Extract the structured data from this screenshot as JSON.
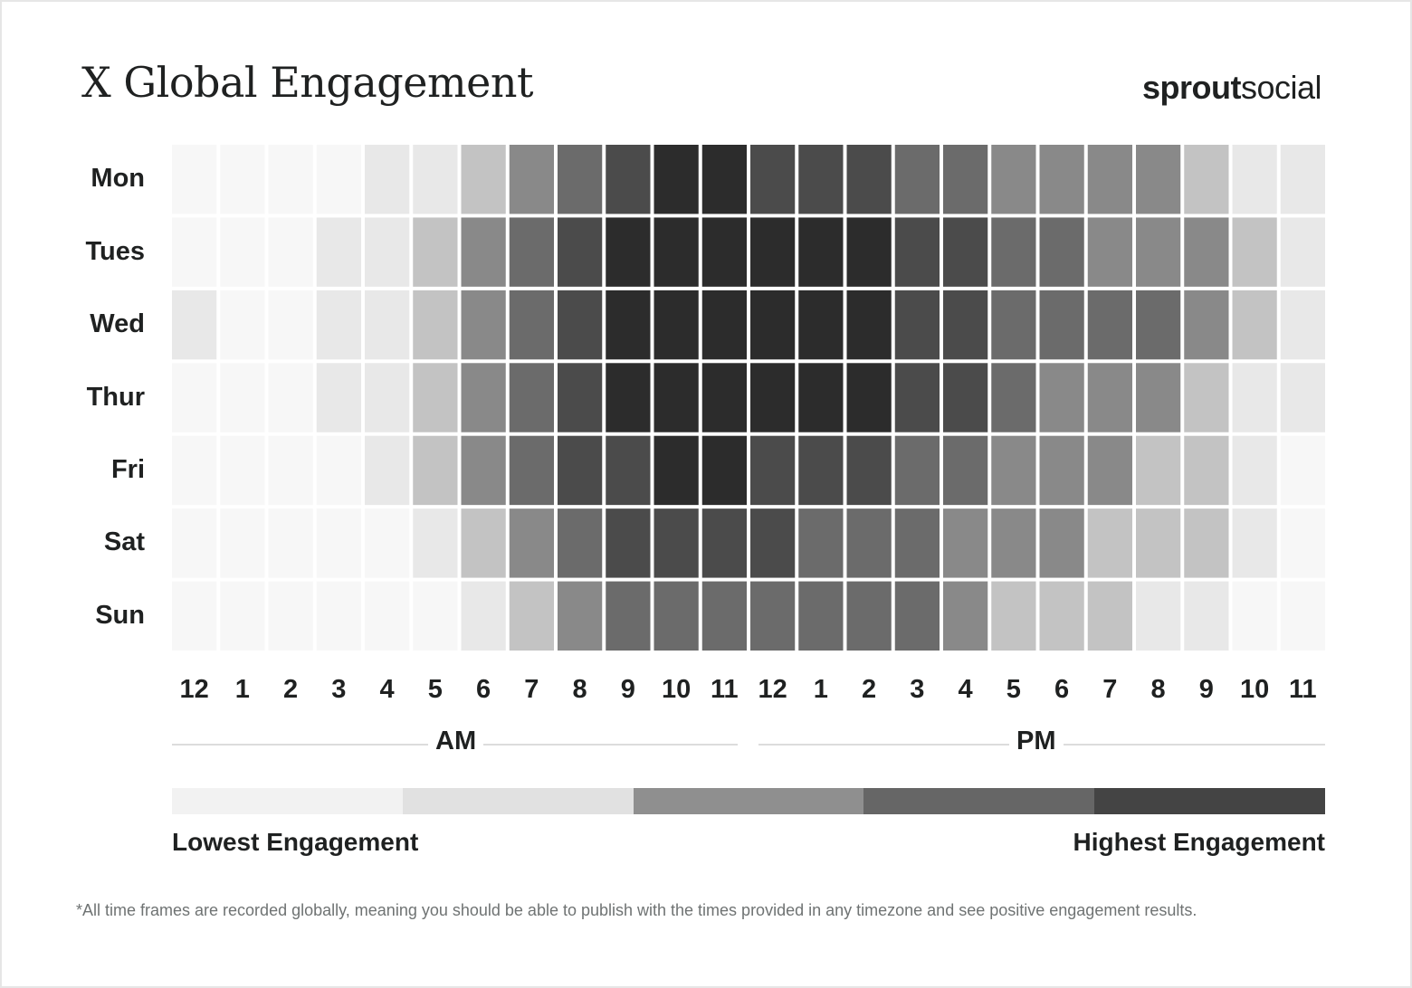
{
  "title": "X Global Engagement",
  "brand": {
    "bold": "sprout",
    "light": "social"
  },
  "chart_data": {
    "type": "heatmap",
    "title": "X Global Engagement",
    "rows": [
      "Mon",
      "Tues",
      "Wed",
      "Thur",
      "Fri",
      "Sat",
      "Sun"
    ],
    "columns": [
      "12",
      "1",
      "2",
      "3",
      "4",
      "5",
      "6",
      "7",
      "8",
      "9",
      "10",
      "11",
      "12",
      "1",
      "2",
      "3",
      "4",
      "5",
      "6",
      "7",
      "8",
      "9",
      "10",
      "11"
    ],
    "periods": [
      "AM",
      "PM"
    ],
    "scale": [
      "#f7f7f7",
      "#e8e8e8",
      "#c3c3c3",
      "#898989",
      "#6b6b6b",
      "#4b4b4b",
      "#2c2c2c"
    ],
    "levels": [
      [
        0,
        0,
        0,
        0,
        1,
        1,
        2,
        3,
        4,
        5,
        6,
        6,
        5,
        5,
        5,
        4,
        4,
        3,
        3,
        3,
        3,
        2,
        1,
        1
      ],
      [
        0,
        0,
        0,
        1,
        1,
        2,
        3,
        4,
        5,
        6,
        6,
        6,
        6,
        6,
        6,
        5,
        5,
        4,
        4,
        3,
        3,
        3,
        2,
        1
      ],
      [
        1,
        0,
        0,
        1,
        1,
        2,
        3,
        4,
        5,
        6,
        6,
        6,
        6,
        6,
        6,
        5,
        5,
        4,
        4,
        4,
        4,
        3,
        2,
        1
      ],
      [
        0,
        0,
        0,
        1,
        1,
        2,
        3,
        4,
        5,
        6,
        6,
        6,
        6,
        6,
        6,
        5,
        5,
        4,
        3,
        3,
        3,
        2,
        1,
        1
      ],
      [
        0,
        0,
        0,
        0,
        1,
        2,
        3,
        4,
        5,
        5,
        6,
        6,
        5,
        5,
        5,
        4,
        4,
        3,
        3,
        3,
        2,
        2,
        1,
        0
      ],
      [
        0,
        0,
        0,
        0,
        0,
        1,
        2,
        3,
        4,
        5,
        5,
        5,
        5,
        4,
        4,
        4,
        3,
        3,
        3,
        2,
        2,
        2,
        1,
        0
      ],
      [
        0,
        0,
        0,
        0,
        0,
        0,
        1,
        2,
        3,
        4,
        4,
        4,
        4,
        4,
        4,
        4,
        3,
        2,
        2,
        2,
        1,
        1,
        0,
        0
      ]
    ],
    "legend": {
      "colors": [
        "#f2f2f2",
        "#e1e1e1",
        "#8f8f8f",
        "#666666",
        "#444444"
      ],
      "low_label": "Lowest Engagement",
      "high_label": "Highest Engagement"
    }
  },
  "footnote": "*All time frames are recorded globally, meaning you should be able to publish with the times provided in any timezone and see positive engagement results."
}
